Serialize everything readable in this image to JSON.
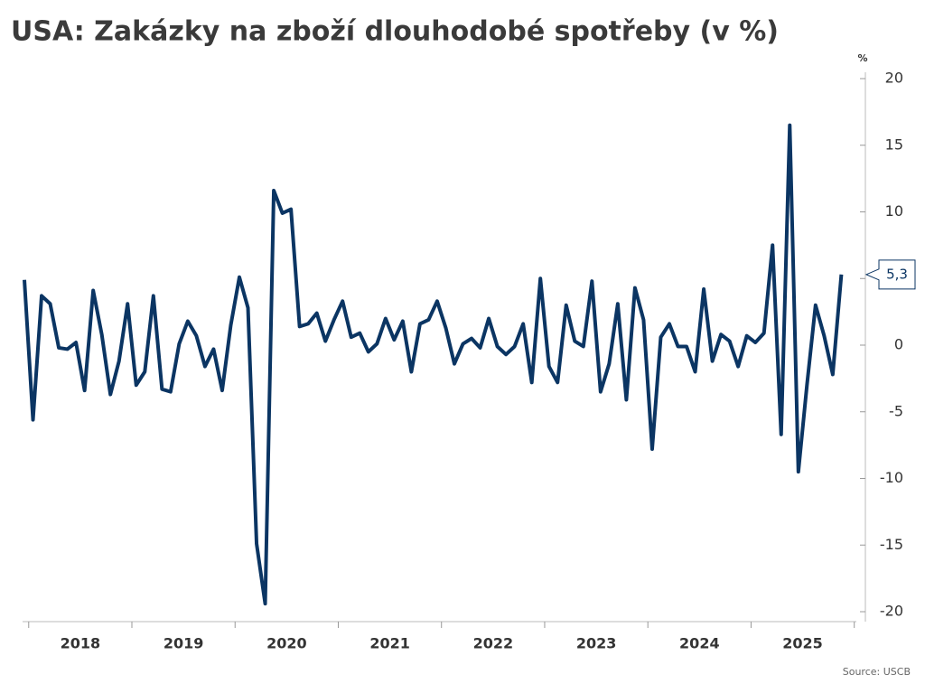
{
  "chart_data": {
    "type": "line",
    "title": "USA: Zakázky na zboží dlouhodobé spotřeby (v %)",
    "y_label": "%",
    "source": "Source: USCB",
    "year_labels": [
      "2018",
      "2019",
      "2020",
      "2021",
      "2022",
      "2023",
      "2024",
      "2025"
    ],
    "color": "#0b3563",
    "values": [
      4.9,
      -5.6,
      3.7,
      3.1,
      -0.2,
      -0.3,
      0.2,
      -3.4,
      4.1,
      0.8,
      -3.7,
      -1.2,
      3.1,
      -3.0,
      -2.0,
      3.7,
      -3.3,
      -3.5,
      0.1,
      1.8,
      0.7,
      -1.6,
      -0.3,
      -3.4,
      1.5,
      5.1,
      2.8,
      -14.9,
      -19.4,
      11.6,
      9.9,
      10.2,
      1.4,
      1.6,
      2.4,
      0.3,
      1.9,
      3.3,
      0.6,
      0.9,
      -0.5,
      0.1,
      2.0,
      0.4,
      1.8,
      -2.0,
      1.6,
      1.9,
      3.3,
      1.3,
      -1.4,
      0.1,
      0.5,
      -0.2,
      2.0,
      -0.1,
      -0.7,
      -0.1,
      1.6,
      -2.8,
      5.0,
      -1.6,
      -2.8,
      3.0,
      0.3,
      -0.1,
      4.8,
      -3.5,
      -1.4,
      3.1,
      -4.1,
      4.3,
      1.9,
      -7.8,
      0.6,
      1.6,
      -0.1,
      -0.1,
      -2.0,
      4.2,
      -1.2,
      0.8,
      0.3,
      -1.6,
      0.7,
      0.2,
      0.9,
      7.5,
      -6.7,
      16.5,
      -9.5,
      -3.0,
      3.0,
      0.7,
      -2.2,
      5.3
    ],
    "value_labels": [
      null,
      null,
      null,
      null,
      null,
      null,
      null,
      null,
      null,
      null,
      null,
      null,
      null,
      null,
      null,
      null,
      null,
      null,
      null,
      null,
      null,
      null,
      null,
      null,
      null,
      null,
      null,
      null,
      null,
      null,
      null,
      null,
      null,
      null,
      null,
      null,
      null,
      null,
      null,
      null,
      null,
      null,
      null,
      null,
      null,
      null,
      null,
      null,
      null,
      null,
      null,
      null,
      null,
      null,
      null,
      null,
      null,
      null,
      null,
      null,
      null,
      null,
      null,
      null,
      null,
      null,
      null,
      null,
      null,
      null,
      null,
      null,
      null,
      null,
      null,
      null,
      null,
      null,
      null,
      null,
      null,
      null,
      null,
      null,
      null,
      null,
      null,
      null,
      null,
      null,
      null,
      null,
      null,
      null,
      null,
      "5,3"
    ],
    "ylim": [
      -20,
      20
    ],
    "yticks": [
      -20,
      -15,
      -10,
      -5,
      0,
      5,
      10,
      15,
      20
    ],
    "grid": false
  }
}
